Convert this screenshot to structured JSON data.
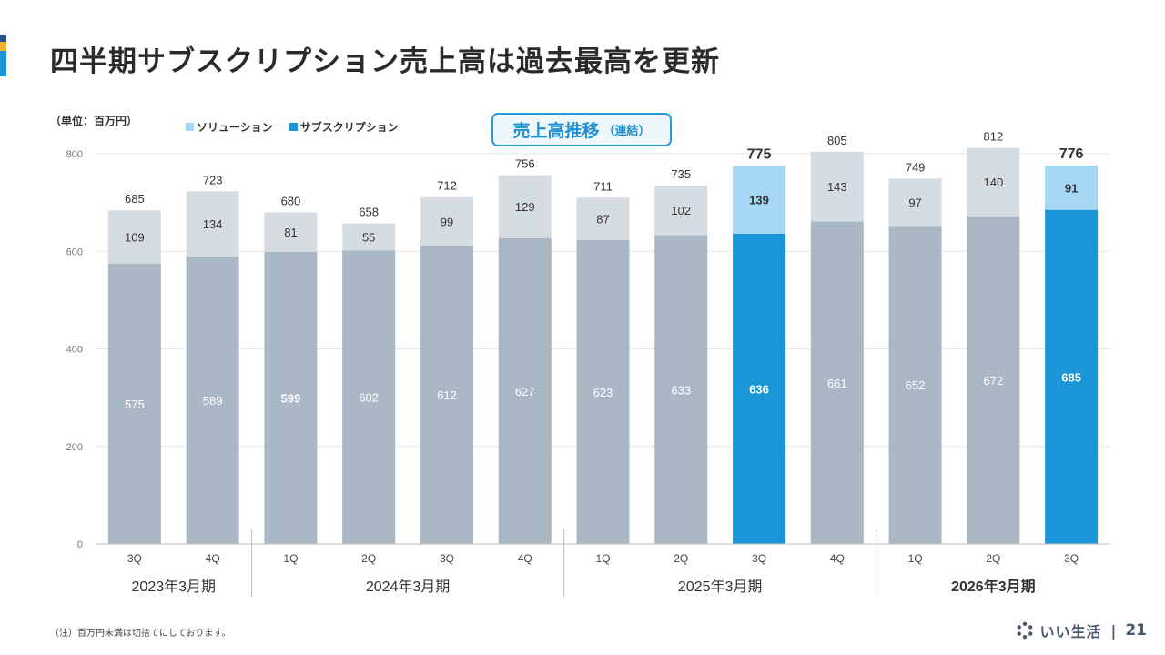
{
  "page": {
    "title": "四半期サブスクリプション売上高は過去最高を更新",
    "unit_label": "（単位：百万円）",
    "badge_main": "売上高推移",
    "badge_sub": "（連結）",
    "footnote": "（注）百万円未満は切捨てにしております。",
    "brand_name": "いい生活",
    "brand_separator": "|",
    "page_number": "21"
  },
  "colors": {
    "accent_navy": "#2f4f8a",
    "accent_yellow": "#f2b233",
    "accent_blue": "#1a96d8",
    "subscription_normal": "#aab7c4",
    "solution_normal": "#d5dce2",
    "subscription_highlight": "#1a96d8",
    "solution_highlight": "#a3d7f3"
  },
  "legend": [
    {
      "label": "ソリューション",
      "color": "#a3d7f3"
    },
    {
      "label": "サブスクリプション",
      "color": "#1a96d8"
    }
  ],
  "chart_data": {
    "type": "bar",
    "stacked": true,
    "title": "売上高推移（連結）",
    "xlabel": "",
    "ylabel": "百万円",
    "ylim": [
      0,
      800
    ],
    "yticks": [
      0,
      200,
      400,
      600,
      800
    ],
    "grid": true,
    "legend_position": "top-left",
    "categories": [
      "3Q",
      "4Q",
      "1Q",
      "2Q",
      "3Q",
      "4Q",
      "1Q",
      "2Q",
      "3Q",
      "4Q",
      "1Q",
      "2Q",
      "3Q"
    ],
    "groups": [
      {
        "label": "2023年3月期",
        "count": 2,
        "bold": false
      },
      {
        "label": "2024年3月期",
        "count": 4,
        "bold": false
      },
      {
        "label": "2025年3月期",
        "count": 4,
        "bold": false
      },
      {
        "label": "2026年3月期",
        "count": 3,
        "bold": true
      }
    ],
    "series": [
      {
        "name": "サブスクリプション",
        "values": [
          575,
          589,
          599,
          602,
          612,
          627,
          623,
          633,
          636,
          661,
          652,
          672,
          685
        ]
      },
      {
        "name": "ソリューション",
        "values": [
          109,
          134,
          81,
          55,
          99,
          129,
          87,
          102,
          139,
          143,
          97,
          140,
          91
        ]
      }
    ],
    "totals": [
      685,
      723,
      680,
      658,
      712,
      756,
      711,
      735,
      775,
      805,
      749,
      812,
      776
    ],
    "highlighted": [
      8,
      12
    ],
    "bold_value_labels": [
      2
    ]
  }
}
